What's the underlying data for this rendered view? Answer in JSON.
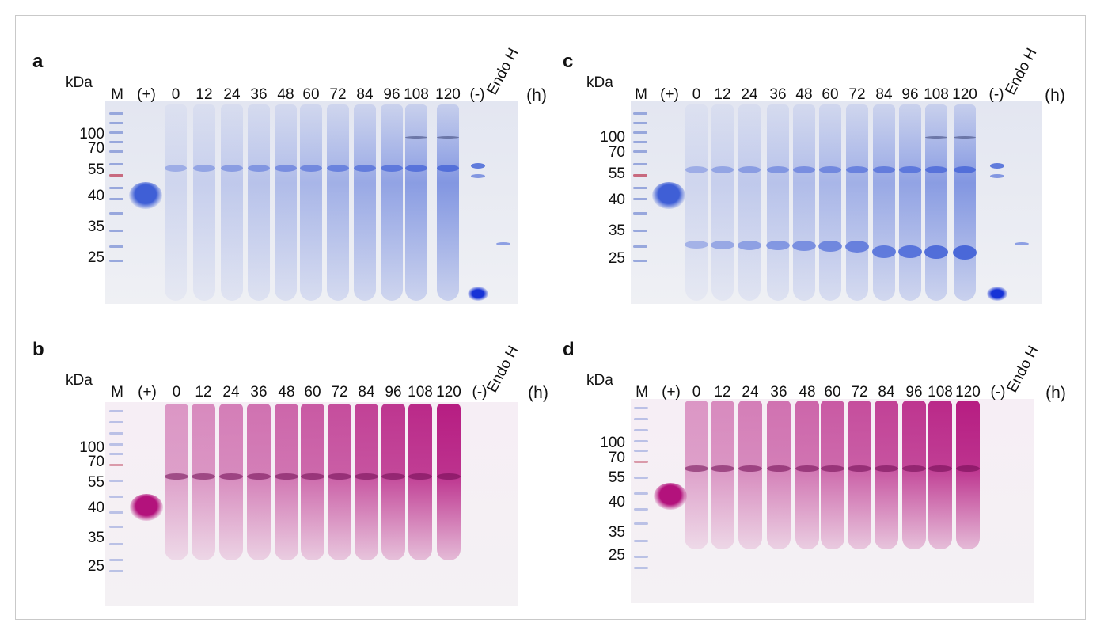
{
  "panels": [
    {
      "id": "a",
      "label": "a",
      "stain": "blue",
      "unit": "kDa",
      "lane_labels": [
        "M",
        "(+)",
        "0",
        "12",
        "24",
        "36",
        "48",
        "60",
        "72",
        "84",
        "96",
        "108",
        "120",
        "(-)",
        "Endo H",
        "(h)"
      ],
      "mw_markers": [
        "100",
        "70",
        "55",
        "40",
        "35",
        "25"
      ]
    },
    {
      "id": "b",
      "label": "b",
      "stain": "magenta",
      "unit": "kDa",
      "lane_labels": [
        "M",
        "(+)",
        "0",
        "12",
        "24",
        "36",
        "48",
        "60",
        "72",
        "84",
        "96",
        "108",
        "120",
        "(-)",
        "Endo H",
        "(h)"
      ],
      "mw_markers": [
        "100",
        "70",
        "55",
        "40",
        "35",
        "25"
      ]
    },
    {
      "id": "c",
      "label": "c",
      "stain": "blue",
      "unit": "kDa",
      "lane_labels": [
        "M",
        "(+)",
        "0",
        "12",
        "24",
        "36",
        "48",
        "60",
        "72",
        "84",
        "96",
        "108",
        "120",
        "(-)",
        "Endo H",
        "(h)"
      ],
      "mw_markers": [
        "100",
        "70",
        "55",
        "40",
        "35",
        "25"
      ]
    },
    {
      "id": "d",
      "label": "d",
      "stain": "magenta",
      "unit": "kDa",
      "lane_labels": [
        "M",
        "(+)",
        "0",
        "12",
        "24",
        "36",
        "48",
        "60",
        "72",
        "84",
        "96",
        "108",
        "120",
        "(-)",
        "Endo H",
        "(h)"
      ],
      "mw_markers": [
        "100",
        "70",
        "55",
        "40",
        "35",
        "25"
      ]
    }
  ],
  "colors": {
    "coomassie": "#3f5fd6",
    "pas_stain": "#b3127c",
    "ladder_blue": "#8a9bd8",
    "ladder_red": "#c2536b"
  }
}
